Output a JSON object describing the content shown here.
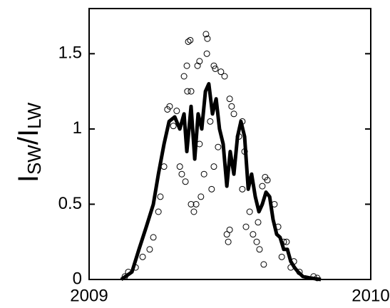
{
  "chart_data": {
    "type": "scatter",
    "y_label_parts": [
      "I",
      "SW",
      "/I",
      "LW"
    ],
    "xlim": [
      2009,
      2010
    ],
    "xticks": [
      2009,
      2010
    ],
    "ylim": [
      0,
      1.8
    ],
    "yticks": [
      0,
      0.5,
      1,
      1.5
    ],
    "series": [
      {
        "kind": "scatter",
        "color": "#000000",
        "x": [
          2009.352,
          2009.359,
          2009.415,
          2009.42,
          2009.443,
          2009.448,
          2009.385,
          2009.392,
          2009.349,
          2009.362,
          2009.337,
          2009.347,
          2009.418,
          2009.468,
          2009.481,
          2009.499,
          2009.506,
          2009.489,
          2009.494,
          2009.499,
          2009.372,
          2009.38,
          2009.362,
          2009.397,
          2009.435,
          2009.443,
          2009.458,
          2009.544,
          2009.557,
          2009.57,
          2009.582,
          2009.595,
          2009.6,
          2009.605,
          2009.62,
          2009.633,
          2009.615,
          2009.625,
          2009.658,
          2009.671,
          2009.684,
          2009.691,
          2009.701,
          2009.716,
          2009.727,
          2009.747,
          2009.228,
          2009.215,
          2009.246,
          2009.253,
          2009.266,
          2009.278,
          2009.286,
          2009.299,
          2009.311,
          2009.322,
          2009.329,
          2009.342,
          2009.392,
          2009.408,
          2009.43,
          2009.514,
          2009.532,
          2009.544,
          2009.552,
          2009.19,
          2009.165,
          2009.139,
          2009.127,
          2009.797,
          2009.81
        ],
        "y": [
          1.58,
          1.59,
          1.63,
          1.6,
          1.42,
          1.4,
          1.42,
          1.45,
          1.25,
          1.25,
          1.35,
          1.42,
          1.5,
          1.38,
          1.35,
          1.2,
          1.15,
          0.3,
          0.25,
          0.33,
          0.45,
          0.5,
          0.5,
          0.55,
          0.6,
          0.75,
          0.88,
          0.6,
          0.35,
          0.45,
          0.3,
          0.25,
          0.38,
          0.2,
          0.1,
          0.66,
          0.62,
          0.68,
          0.5,
          0.35,
          0.15,
          0.25,
          0.25,
          0.08,
          0.12,
          0.05,
          0.28,
          0.2,
          0.45,
          0.55,
          0.75,
          1.13,
          1.15,
          1.02,
          1.12,
          0.75,
          0.7,
          0.65,
          0.9,
          0.7,
          1.05,
          1.1,
          0.95,
          1.05,
          0.85,
          0.15,
          0.08,
          0.05,
          0.02,
          0.02,
          0.01
        ]
      },
      {
        "kind": "line",
        "color": "#000000",
        "x": [
          2009.114,
          2009.152,
          2009.177,
          2009.203,
          2009.228,
          2009.246,
          2009.266,
          2009.284,
          2009.304,
          2009.322,
          2009.337,
          2009.347,
          2009.362,
          2009.375,
          2009.387,
          2009.4,
          2009.413,
          2009.425,
          2009.438,
          2009.451,
          2009.463,
          2009.476,
          2009.489,
          2009.501,
          2009.514,
          2009.527,
          2009.539,
          2009.552,
          2009.565,
          2009.577,
          2009.59,
          2009.603,
          2009.615,
          2009.628,
          2009.641,
          2009.653,
          2009.666,
          2009.678,
          2009.691,
          2009.704,
          2009.716,
          2009.729,
          2009.742,
          2009.759,
          2009.785,
          2009.823
        ],
        "y": [
          0,
          0.05,
          0.2,
          0.35,
          0.5,
          0.7,
          0.9,
          1.05,
          1.08,
          1.0,
          1.1,
          0.85,
          1.15,
          0.8,
          1.1,
          1.0,
          1.25,
          1.3,
          1.1,
          1.2,
          1.0,
          0.9,
          0.62,
          0.85,
          0.7,
          0.95,
          1.05,
          0.95,
          0.6,
          0.7,
          0.55,
          0.45,
          0.5,
          0.58,
          0.55,
          0.4,
          0.3,
          0.28,
          0.2,
          0.2,
          0.12,
          0.08,
          0.05,
          0.02,
          0.01,
          0
        ]
      }
    ]
  }
}
